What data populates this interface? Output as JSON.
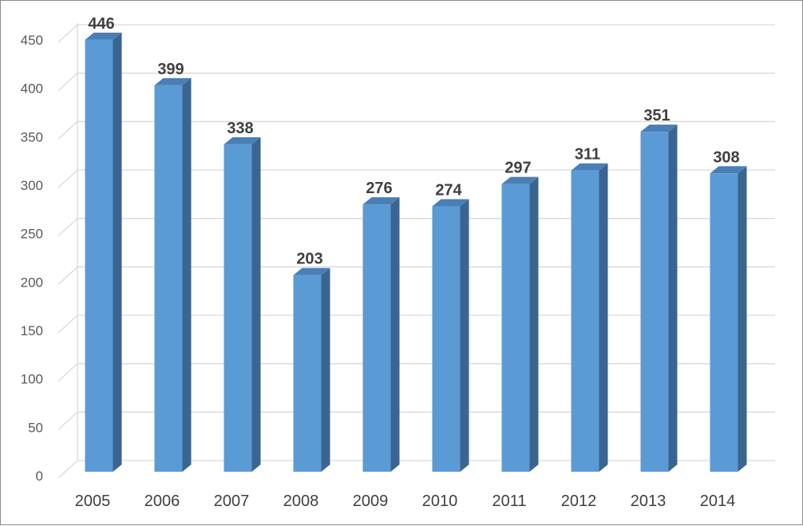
{
  "chart_data": {
    "type": "bar",
    "title": "",
    "xlabel": "",
    "ylabel": "",
    "categories": [
      "2005",
      "2006",
      "2007",
      "2008",
      "2009",
      "2010",
      "2011",
      "2012",
      "2013",
      "2014"
    ],
    "values": [
      446,
      399,
      338,
      203,
      276,
      274,
      297,
      311,
      351,
      308
    ],
    "data_labels": [
      "446",
      "399",
      "338",
      "203",
      "276",
      "274",
      "297",
      "311",
      "351",
      "308"
    ],
    "ylim": [
      0,
      450
    ],
    "yticks": [
      "0",
      "50",
      "100",
      "150",
      "200",
      "250",
      "300",
      "350",
      "400",
      "450"
    ],
    "grid": true,
    "legend": "none",
    "style": "3d-column",
    "colors": {
      "bar_front": "#5b9bd5",
      "bar_side": "#3a6591",
      "bar_top": "#4a7fb5",
      "grid": "#d9d9d9",
      "frame": "#8c8c8c"
    }
  }
}
